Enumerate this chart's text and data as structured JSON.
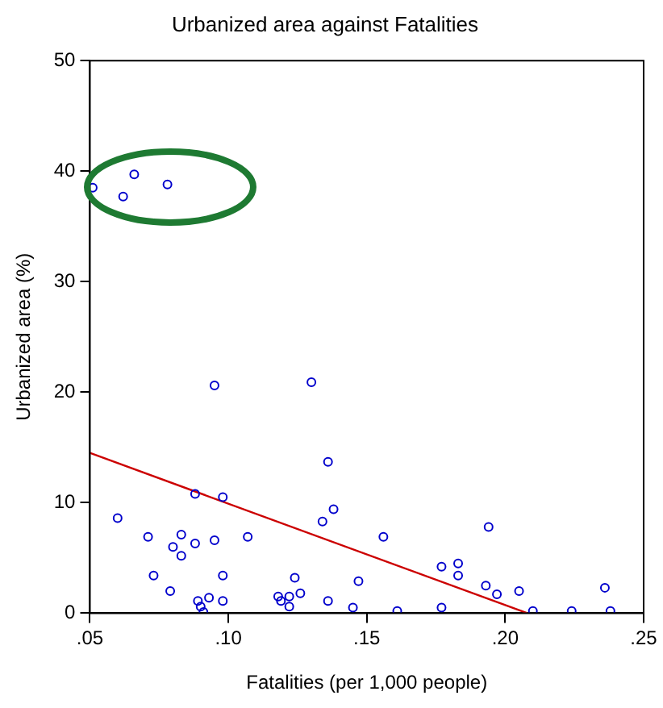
{
  "chart_data": {
    "type": "scatter",
    "title": "Urbanized area against Fatalities",
    "xlabel": "Fatalities (per 1,000 people)",
    "ylabel": "Urbanized area (%)",
    "xlim": [
      0.05,
      0.25
    ],
    "xticks": [
      {
        "value": 0.05,
        "label": ".05"
      },
      {
        "value": 0.1,
        "label": ".10"
      },
      {
        "value": 0.15,
        "label": ".15"
      },
      {
        "value": 0.2,
        "label": ".20"
      },
      {
        "value": 0.25,
        "label": ".25"
      }
    ],
    "ylim": [
      0,
      50
    ],
    "yticks": [
      0,
      10,
      20,
      30,
      40,
      50
    ],
    "grid": false,
    "legend": false,
    "marker": "circle",
    "series": [
      {
        "type": "scatter",
        "color": "#0000cc",
        "x": [
          0.051,
          0.066,
          0.062,
          0.078,
          0.095,
          0.13,
          0.136,
          0.088,
          0.098,
          0.06,
          0.138,
          0.134,
          0.071,
          0.083,
          0.107,
          0.08,
          0.088,
          0.095,
          0.083,
          0.073,
          0.098,
          0.124,
          0.147,
          0.079,
          0.089,
          0.09,
          0.091,
          0.093,
          0.098,
          0.118,
          0.119,
          0.122,
          0.126,
          0.122,
          0.136,
          0.145,
          0.156,
          0.194,
          0.177,
          0.183,
          0.183,
          0.193,
          0.197,
          0.205,
          0.236,
          0.161,
          0.177,
          0.21,
          0.224,
          0.238
        ],
        "values": [
          38.5,
          39.7,
          37.7,
          38.8,
          20.6,
          20.9,
          13.7,
          10.8,
          10.5,
          8.6,
          9.4,
          8.3,
          6.9,
          7.1,
          6.9,
          6.0,
          6.3,
          6.6,
          5.2,
          3.4,
          3.4,
          3.2,
          2.9,
          2.0,
          1.1,
          0.6,
          0.1,
          1.4,
          1.1,
          1.5,
          1.1,
          1.5,
          1.8,
          0.6,
          1.1,
          0.5,
          6.9,
          7.8,
          4.2,
          4.5,
          3.4,
          2.5,
          1.7,
          2.0,
          2.3,
          0.2,
          0.5,
          0.2,
          0.2,
          0.2
        ]
      },
      {
        "type": "line",
        "color": "#cc0000",
        "marker": "none",
        "x": [
          0.05,
          0.208
        ],
        "values": [
          14.5,
          0
        ]
      }
    ]
  }
}
